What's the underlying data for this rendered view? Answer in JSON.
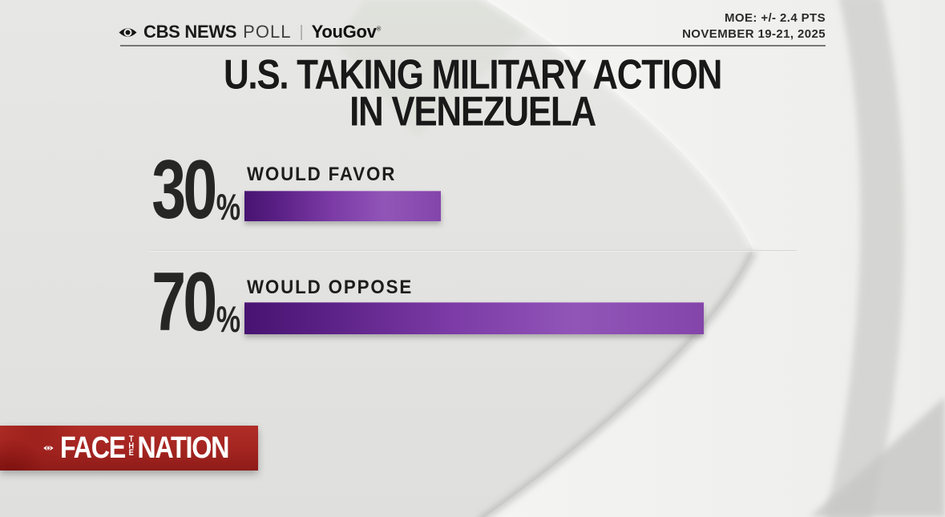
{
  "header": {
    "brand": {
      "name": "CBS NEWS",
      "product": "POLL",
      "separator": "|",
      "partner": "YouGov",
      "trademark": "®"
    },
    "meta": {
      "moe": "MOE: +/- 2.4 PTS",
      "dates": "NOVEMBER 19-21, 2025"
    }
  },
  "title": {
    "line1": "U.S. TAKING MILITARY ACTION",
    "line2": "IN VENEZUELA"
  },
  "chart_data": {
    "type": "bar",
    "orientation": "horizontal",
    "title": "U.S. TAKING MILITARY ACTION IN VENEZUELA",
    "categories": [
      "WOULD FAVOR",
      "WOULD OPPOSE"
    ],
    "values": [
      30,
      70
    ],
    "unit": "%",
    "xlim": [
      0,
      100
    ],
    "grid": false,
    "legend": false,
    "bar_gradient": [
      "#471371",
      "#8b4bb1"
    ],
    "source": "CBS NEWS POLL | YouGov",
    "margin_of_error": "MOE: +/- 2.4 PTS",
    "field_dates": "NOVEMBER 19-21, 2025"
  },
  "rows": [
    {
      "value": "30",
      "suffix": "%",
      "label": "WOULD FAVOR",
      "pct": 30
    },
    {
      "value": "70",
      "suffix": "%",
      "label": "WOULD OPPOSE",
      "pct": 70
    }
  ],
  "footer": {
    "show_logo": {
      "face": "FACE",
      "the": "THE",
      "nation": "NATION"
    }
  },
  "colors": {
    "background": "#e3e3e1",
    "bar_dark": "#471371",
    "bar_light": "#8b4bb1",
    "banner_red": "#a32420",
    "text_dark": "#1d1d1d"
  }
}
